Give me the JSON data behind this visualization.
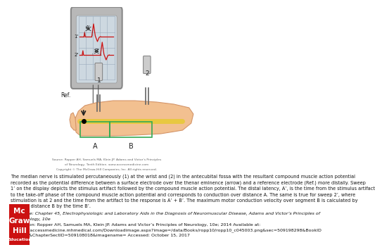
{
  "bg_color": "#ffffff",
  "caption_lines": [
    "The median nerve is stimulated percutaneously (1) at the wrist and (2) in the antecubital fossa with the resultant compound muscle action potential",
    "recorded as the potential difference between a surface electrode over the thenar eminence (arrow) and a reference electrode (Ref.) more distally. Sweep",
    "1’ on the display depicts the stimulus artifact followed by the compound muscle action potential. The distal latency, A’, is the time from the stimulus artifact",
    "to the take-off phase of the compound muscle action potential and corresponds to conduction over distance A. The same is true for sweep 2’, where",
    "stimulation is at 2 and the time from the artifact to the response is A’ + B’. The maximum motor conduction velocity over segment B is calculated by",
    "dividing distance B by the time B’."
  ],
  "source_line1": "Source: Ropper AH, Samuels MA, Klein JP. Adams and Victor’s Principles",
  "source_line2": "of Neurology, Tenth Edition. www.accessmedicine.com",
  "source_line3": "Copyright © The McGraw-Hill Companies, Inc. All rights reserved.",
  "src_chapter": "Source: Chapter 45, Electrophysiologic and Laboratory Aids in the Diagnosis of Neuromuscular Disease, Adams and Victor’s Principles of",
  "src_chapter2": "Neurology, 10e",
  "citation1": "Citation: Ropper AH, Samuels MA, Klein JP. Adams and Victor’s Principles of Neurology, 10e; 2014 Available at:",
  "citation2": "http://accessmedicine.mhmedical.com/Downloadimage.aspx?image=/data/Books/ropp10/ropp10_c045003.png&sec=509198298&BookID",
  "citation3": "=690&ChapterSectID=509108018&imagename= Accessed: October 15, 2017",
  "skin_color": "#f2c090",
  "skin_edge": "#d4956a",
  "nerve_color": "#e8c840",
  "screen_color": "#cdd8e0",
  "monitor_color": "#b8b8b8",
  "monitor_dark": "#888888",
  "trace_color": "#cc1111",
  "green_color": "#33aa55",
  "needle_body": "#cccccc",
  "needle_edge": "#888888"
}
